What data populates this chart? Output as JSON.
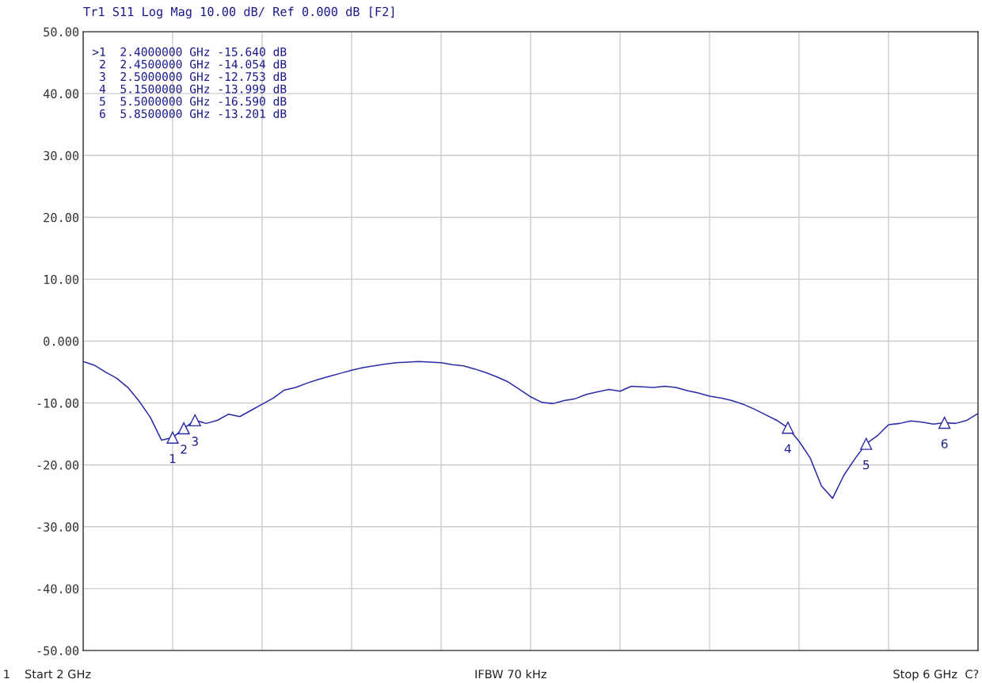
{
  "chart_data": {
    "type": "line",
    "title": "Tr1 S11 Log Mag 10.00 dB/ Ref 0.000 dB [F2]",
    "categories": [
      null,
      null,
      null,
      null,
      null,
      null,
      null,
      null,
      null,
      null,
      null,
      null,
      null,
      null,
      null,
      null,
      null,
      null,
      null,
      null,
      null,
      null,
      null,
      null,
      null,
      null,
      null,
      null,
      null,
      null,
      null,
      null,
      null,
      null,
      null,
      null,
      null,
      null,
      null,
      null,
      null,
      null,
      null,
      null,
      null,
      null,
      null,
      null,
      null,
      null,
      null,
      null,
      null,
      null,
      null,
      null,
      null,
      null,
      null,
      null,
      null,
      null,
      null,
      null,
      null,
      null,
      null,
      null,
      null,
      null,
      null,
      null,
      null,
      null,
      null,
      null,
      null,
      null,
      null,
      null,
      null
    ],
    "ylim": [
      -50,
      50
    ],
    "yticks": [
      {
        "value": -50,
        "label": "-50.00"
      },
      {
        "value": -40,
        "label": "-40.00"
      },
      {
        "value": -30,
        "label": "-30.00"
      },
      {
        "value": -20,
        "label": "-20.00"
      },
      {
        "value": -10,
        "label": "-10.00"
      },
      {
        "value": 0,
        "label": "0.000"
      },
      {
        "value": 10,
        "label": "10.00"
      },
      {
        "value": 20,
        "label": "20.00"
      },
      {
        "value": 30,
        "label": "30.00"
      },
      {
        "value": 40,
        "label": "40.00"
      },
      {
        "value": 50,
        "label": "50.00"
      }
    ],
    "tick_labels": "y",
    "grid": true,
    "series": [
      {
        "color": "#2a2aa8",
        "values": [
          -3.3,
          -3.9,
          -5.0,
          -6.0,
          -7.5,
          -9.7,
          -12.3,
          -16.0,
          -15.6,
          -14.1,
          -12.8,
          -13.3,
          -12.8,
          -11.8,
          -12.2,
          -11.2,
          -10.2,
          -9.2,
          -7.9,
          -7.5,
          -6.8,
          -6.2,
          -5.7,
          -5.2,
          -4.7,
          -4.3,
          -4.0,
          -3.7,
          -3.5,
          -3.4,
          -3.3,
          -3.4,
          -3.5,
          -3.8,
          -4.0,
          -4.5,
          -5.1,
          -5.8,
          -6.6,
          -7.8,
          -9.0,
          -9.9,
          -10.1,
          -9.6,
          -9.3,
          -8.6,
          -8.2,
          -7.8,
          -8.1,
          -7.3,
          -7.4,
          -7.5,
          -7.3,
          -7.5,
          -8.0,
          -8.4,
          -8.9,
          -9.2,
          -9.6,
          -10.2,
          -11.0,
          -11.9,
          -12.8,
          -14.0,
          -16.2,
          -18.9,
          -23.4,
          -25.4,
          -21.7,
          -19.0,
          -16.6,
          -15.3,
          -13.5,
          -13.3,
          -12.9,
          -13.1,
          -13.4,
          -13.2,
          -13.3,
          -12.8,
          -11.7
        ]
      }
    ],
    "annotations": [
      ">1  2.4000000 GHz -15.640 dB",
      " 2  2.4500000 GHz -14.054 dB",
      " 3  2.5000000 GHz -12.753 dB",
      " 4  5.1500000 GHz -13.999 dB",
      " 5  5.5000000 GHz -16.590 dB",
      " 6  5.8500000 GHz -13.201 dB",
      "1",
      "Start 2 GHz",
      "IFBW 70 kHz",
      "Stop 6 GHz",
      "C?",
      {
        "text": "1",
        "y": -15.6
      },
      {
        "text": "2",
        "y": -14.1
      },
      {
        "text": "3",
        "y": -12.8
      },
      {
        "text": "4",
        "y": -14.0
      },
      {
        "text": "5",
        "y": -16.6
      },
      {
        "text": "6",
        "y": -13.2
      }
    ]
  }
}
